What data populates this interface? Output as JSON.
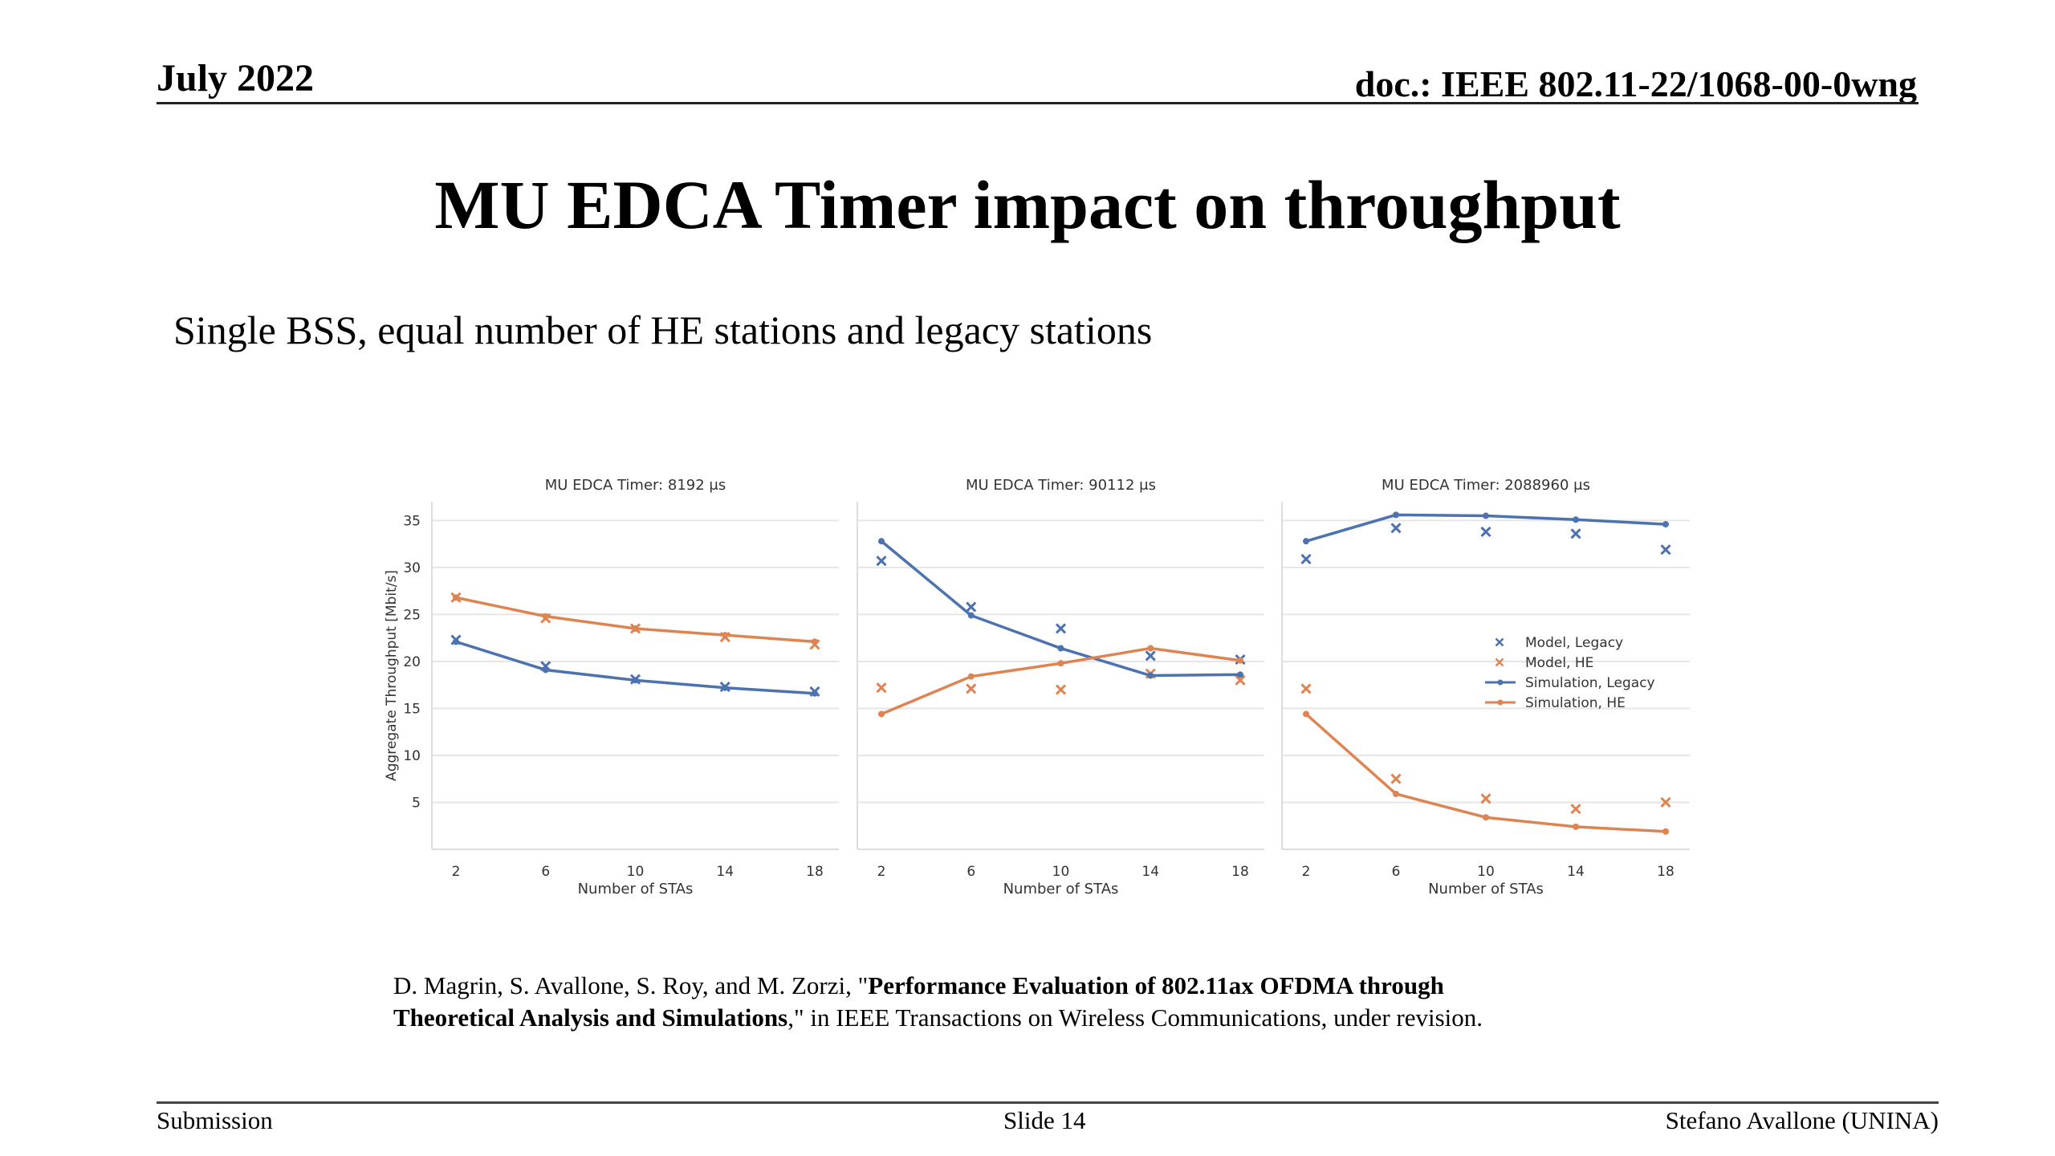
{
  "header": {
    "date": "July 2022",
    "doc": "doc.: IEEE 802.11-22/1068-00-0wng"
  },
  "slide": {
    "title": "MU EDCA Timer impact on throughput",
    "subtitle": "Single BSS, equal number of HE stations and legacy stations"
  },
  "reference": {
    "part1": "D. Magrin, S. Avallone, S. Roy, and M. Zorzi, \"",
    "bold": "Performance Evaluation of 802.11ax OFDMA through",
    "bold2": "Theoretical Analysis and Simulations",
    "part2": ",\" in IEEE Transactions on Wireless Communications, under revision."
  },
  "footer": {
    "left": "Submission",
    "center": "Slide 14",
    "right": "Stefano Avallone (UNINA)"
  },
  "colors": {
    "legacy": "#4c72b0",
    "he": "#dd8452",
    "grid": "#e6e6e6"
  },
  "chart_data": [
    {
      "type": "line",
      "title": "MU EDCA Timer: 8192 μs",
      "xlabel": "Number of STAs",
      "ylabel": "Aggregate Throughput [Mbit/s]",
      "x": [
        2,
        6,
        10,
        14,
        18
      ],
      "ylim": [
        0,
        37
      ],
      "yticks": [
        5,
        10,
        15,
        20,
        25,
        30,
        35
      ],
      "series": [
        {
          "name": "Model, Legacy",
          "kind": "marker",
          "color": "#4c72b0",
          "values": [
            22.3,
            19.5,
            18.1,
            17.3,
            16.8
          ]
        },
        {
          "name": "Model, HE",
          "kind": "marker",
          "color": "#dd8452",
          "values": [
            26.8,
            24.6,
            23.5,
            22.6,
            21.8
          ]
        },
        {
          "name": "Simulation, Legacy",
          "kind": "line",
          "color": "#4c72b0",
          "values": [
            22.1,
            19.1,
            18.0,
            17.2,
            16.6
          ]
        },
        {
          "name": "Simulation, HE",
          "kind": "line",
          "color": "#dd8452",
          "values": [
            26.8,
            24.8,
            23.5,
            22.8,
            22.1
          ]
        }
      ]
    },
    {
      "type": "line",
      "title": "MU EDCA Timer: 90112 μs",
      "xlabel": "Number of STAs",
      "x": [
        2,
        6,
        10,
        14,
        18
      ],
      "ylim": [
        0,
        37
      ],
      "series": [
        {
          "name": "Model, Legacy",
          "kind": "marker",
          "color": "#4c72b0",
          "values": [
            30.7,
            25.8,
            23.5,
            20.6,
            20.2
          ]
        },
        {
          "name": "Model, HE",
          "kind": "marker",
          "color": "#dd8452",
          "values": [
            17.2,
            17.1,
            17.0,
            18.7,
            18.0
          ]
        },
        {
          "name": "Simulation, Legacy",
          "kind": "line",
          "color": "#4c72b0",
          "values": [
            32.8,
            24.9,
            21.4,
            18.5,
            18.6
          ]
        },
        {
          "name": "Simulation, HE",
          "kind": "line",
          "color": "#dd8452",
          "values": [
            14.4,
            18.4,
            19.8,
            21.4,
            20.1
          ]
        }
      ]
    },
    {
      "type": "line",
      "title": "MU EDCA Timer: 2088960 μs",
      "xlabel": "Number of STAs",
      "x": [
        2,
        6,
        10,
        14,
        18
      ],
      "ylim": [
        0,
        37
      ],
      "legend": "center-right",
      "series": [
        {
          "name": "Model, Legacy",
          "kind": "marker",
          "color": "#4c72b0",
          "values": [
            30.9,
            34.2,
            33.8,
            33.6,
            31.9
          ]
        },
        {
          "name": "Model, HE",
          "kind": "marker",
          "color": "#dd8452",
          "values": [
            17.1,
            7.5,
            5.4,
            4.3,
            5.0
          ]
        },
        {
          "name": "Simulation, Legacy",
          "kind": "line",
          "color": "#4c72b0",
          "values": [
            32.8,
            35.6,
            35.5,
            35.1,
            34.6
          ]
        },
        {
          "name": "Simulation, HE",
          "kind": "line",
          "color": "#dd8452",
          "values": [
            14.4,
            5.9,
            3.4,
            2.4,
            1.9
          ]
        }
      ]
    }
  ]
}
